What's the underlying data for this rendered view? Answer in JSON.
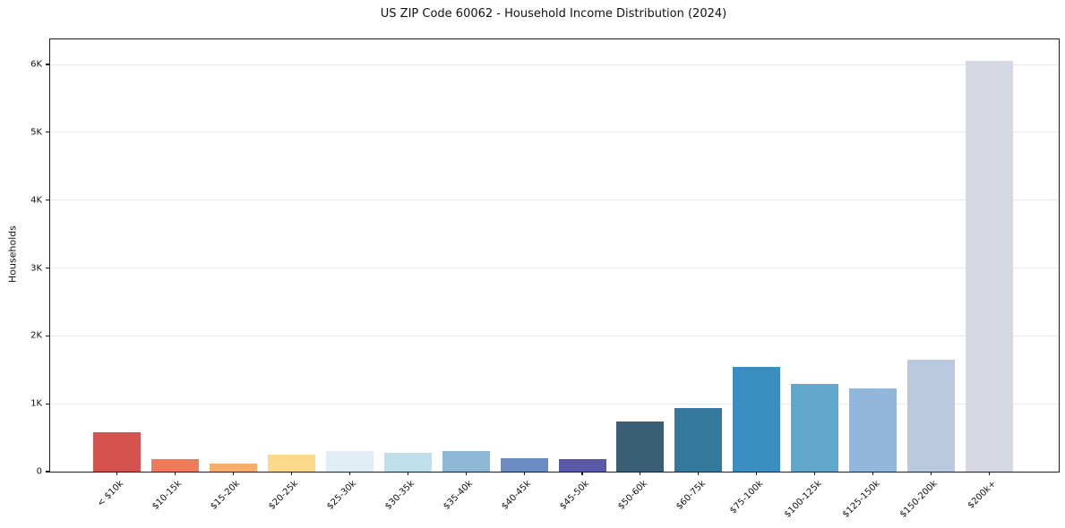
{
  "chart_data": {
    "type": "bar",
    "title": "US ZIP Code 60062 - Household Income Distribution (2024)",
    "xlabel": "",
    "ylabel": "Households",
    "categories": [
      "< $10k",
      "$10-15k",
      "$15-20k",
      "$20-25k",
      "$25-30k",
      "$30-35k",
      "$35-40k",
      "$40-45k",
      "$45-50k",
      "$50-60k",
      "$60-75k",
      "$75-100k",
      "$100-125k",
      "$125-150k",
      "$150-200k",
      "$200k+"
    ],
    "values": [
      575,
      180,
      125,
      255,
      300,
      280,
      310,
      200,
      180,
      740,
      935,
      1545,
      1290,
      1225,
      1655,
      6050
    ],
    "bar_colors": [
      "#d4534f",
      "#ef7b58",
      "#f6ae6d",
      "#fbd98a",
      "#e0eef3",
      "#bedfeb",
      "#8fb7d6",
      "#6b8bc3",
      "#5959a7",
      "#3a5f74",
      "#35799c",
      "#3a8ec1",
      "#61a7cb",
      "#92b7da",
      "#bac9e0",
      "#d6d8e4"
    ],
    "ylim": [
      0,
      6370
    ],
    "yticks": [
      {
        "value": 0,
        "label": "0"
      },
      {
        "value": 1000,
        "label": "1K"
      },
      {
        "value": 2000,
        "label": "2K"
      },
      {
        "value": 3000,
        "label": "3K"
      },
      {
        "value": 4000,
        "label": "4K"
      },
      {
        "value": 5000,
        "label": "5K"
      },
      {
        "value": 6000,
        "label": "6K"
      }
    ],
    "grid": "horizontal",
    "legend": "none",
    "gridline_color": "#e9e9ec",
    "spine_color": "#1c1c1c",
    "background_color": "#ffffff"
  }
}
